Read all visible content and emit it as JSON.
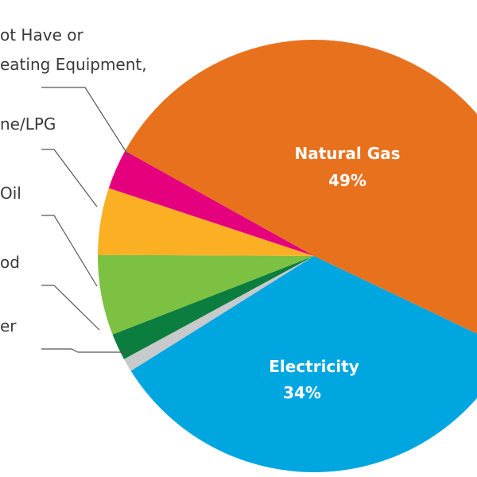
{
  "chart_data": {
    "type": "pie",
    "slices": [
      {
        "label": "Natural Gas",
        "value": 49,
        "value_label": "49%",
        "color": "#e8711e"
      },
      {
        "label": "Electricity",
        "value": 34,
        "value_label": "34%",
        "color": "#00a6e0"
      },
      {
        "label": "er",
        "value": 1,
        "color": "#c8c9cb"
      },
      {
        "label": "od",
        "value": 2,
        "color": "#0b7d3e"
      },
      {
        "label": "Oil",
        "value": 6,
        "color": "#7cc142"
      },
      {
        "label": "ne/LPG",
        "value": 5,
        "color": "#fbb024"
      },
      {
        "label_lines": [
          "ot Have or",
          "eating Equipment,"
        ],
        "value": 3,
        "color": "#e5007e"
      }
    ]
  }
}
